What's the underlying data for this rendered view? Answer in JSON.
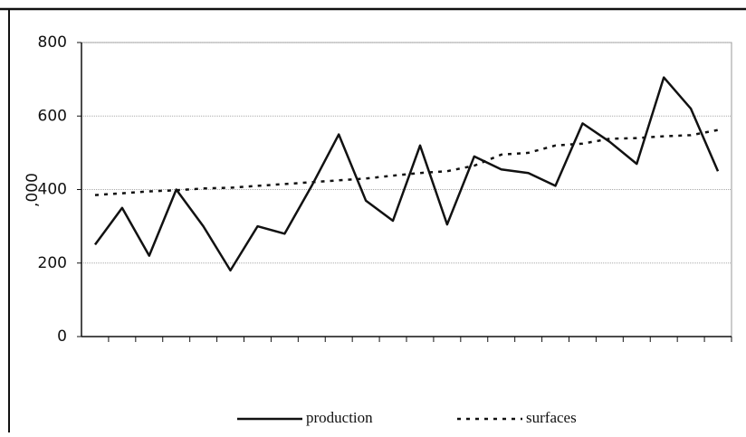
{
  "chart_data": {
    "type": "line",
    "y_label": ",000",
    "categories": [
      null,
      null,
      null,
      null,
      null,
      null,
      null,
      null,
      null,
      null,
      null,
      null,
      null,
      null,
      null,
      null,
      null,
      null,
      null,
      null,
      null,
      null,
      null,
      null
    ],
    "series": [
      {
        "name": "production",
        "color": "#111111",
        "style": "solid",
        "values": [
          250,
          350,
          220,
          400,
          300,
          180,
          300,
          280,
          410,
          550,
          370,
          315,
          520,
          305,
          490,
          455,
          445,
          410,
          580,
          530,
          470,
          705,
          620,
          450
        ]
      },
      {
        "name": "surfaces",
        "color": "#111111",
        "style": "dashed",
        "values": [
          385,
          390,
          395,
          398,
          403,
          405,
          410,
          415,
          420,
          425,
          430,
          438,
          445,
          450,
          465,
          495,
          500,
          520,
          525,
          538,
          540,
          545,
          548,
          562
        ]
      }
    ],
    "ylim": [
      0,
      800
    ],
    "yticks": [
      0,
      200,
      400,
      600,
      800
    ],
    "grid": true,
    "legend": "bottom"
  }
}
